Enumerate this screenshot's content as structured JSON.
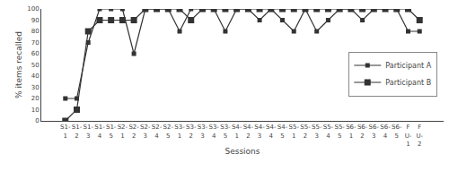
{
  "chart_data": {
    "type": "line",
    "xlabel": "Sessions",
    "ylabel": "% items recalled",
    "categories": [
      "S1-\n1",
      "S1-\n2",
      "S1-\n3",
      "S1-\n4",
      "S1-\n5",
      "S2-\n1",
      "S2-\n2",
      "S2-\n3",
      "S2-\n4",
      "S2-\n5",
      "S3-\n1",
      "S3-\n2",
      "S3-\n3",
      "S3-\n4",
      "S3-\n5",
      "S4-\n1",
      "S4-\n2",
      "S4-\n3",
      "S4-\n4",
      "S4-\n5",
      "S5-\n1",
      "S5-\n2",
      "S5-\n3",
      "S5-\n4",
      "S5-\n5",
      "S6-\n1",
      "S6-\n2",
      "S6-\n3",
      "S6-\n4",
      "S6-\n5",
      "F\nU-\n1",
      "F\nU-\n2"
    ],
    "series": [
      {
        "name": "Participant A",
        "color": "#333333",
        "marker": "square",
        "values": [
          20,
          20,
          70,
          100,
          100,
          100,
          60,
          100,
          100,
          100,
          80,
          100,
          100,
          100,
          80,
          100,
          100,
          90,
          100,
          90,
          80,
          100,
          80,
          90,
          100,
          100,
          90,
          100,
          100,
          100,
          80,
          80
        ]
      },
      {
        "name": "Participant B",
        "color": "#333333",
        "marker": "square",
        "values": [
          0,
          10,
          80,
          90,
          90,
          90,
          90,
          100,
          100,
          100,
          100,
          90,
          100,
          100,
          100,
          100,
          100,
          100,
          100,
          100,
          100,
          100,
          100,
          100,
          100,
          100,
          100,
          100,
          100,
          100,
          100,
          90
        ]
      }
    ],
    "ylim": [
      0,
      100
    ],
    "yticks": [
      0,
      10,
      20,
      30,
      40,
      50,
      60,
      70,
      80,
      90,
      100
    ],
    "grid": false,
    "legend": "right"
  }
}
